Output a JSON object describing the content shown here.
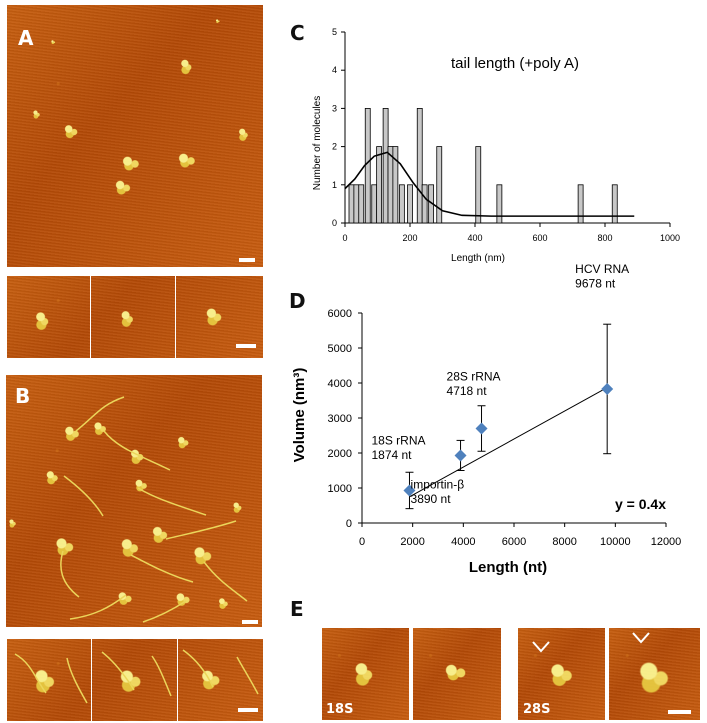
{
  "panel_letters": {
    "A": "A",
    "B": "B",
    "C": "C",
    "D": "D",
    "E": "E"
  },
  "chart_data": [
    {
      "type": "bar",
      "title": "tail length (+poly A)",
      "xlabel": "Length (nm)",
      "ylabel": "Number of molecules",
      "xlim": [
        0,
        1000
      ],
      "ylim": [
        0,
        5
      ],
      "xticks": [
        0,
        200,
        400,
        600,
        800,
        1000
      ],
      "yticks": [
        0,
        1,
        2,
        3,
        4,
        5
      ],
      "grid": false,
      "bars": [
        {
          "x": 20,
          "y": 1
        },
        {
          "x": 35,
          "y": 1
        },
        {
          "x": 50,
          "y": 1
        },
        {
          "x": 70,
          "y": 3
        },
        {
          "x": 90,
          "y": 1
        },
        {
          "x": 105,
          "y": 2
        },
        {
          "x": 125,
          "y": 3
        },
        {
          "x": 140,
          "y": 2
        },
        {
          "x": 155,
          "y": 2
        },
        {
          "x": 175,
          "y": 1
        },
        {
          "x": 200,
          "y": 1
        },
        {
          "x": 230,
          "y": 3
        },
        {
          "x": 245,
          "y": 1
        },
        {
          "x": 265,
          "y": 1
        },
        {
          "x": 290,
          "y": 2
        },
        {
          "x": 410,
          "y": 2
        },
        {
          "x": 475,
          "y": 1
        },
        {
          "x": 725,
          "y": 1
        },
        {
          "x": 830,
          "y": 1
        }
      ],
      "fit_curve": [
        {
          "x": 0,
          "y": 0.9
        },
        {
          "x": 30,
          "y": 1.15
        },
        {
          "x": 60,
          "y": 1.5
        },
        {
          "x": 90,
          "y": 1.75
        },
        {
          "x": 130,
          "y": 1.85
        },
        {
          "x": 170,
          "y": 1.55
        },
        {
          "x": 210,
          "y": 1.05
        },
        {
          "x": 250,
          "y": 0.62
        },
        {
          "x": 300,
          "y": 0.32
        },
        {
          "x": 360,
          "y": 0.2
        },
        {
          "x": 450,
          "y": 0.18
        },
        {
          "x": 890,
          "y": 0.18
        }
      ],
      "colors": {
        "bar_fill": "#c8c8c8",
        "bar_stroke": "#000000",
        "curve": "#000000"
      }
    },
    {
      "type": "scatter",
      "xlabel": "Length (nt)",
      "ylabel": "Volume (nm³)",
      "xlim": [
        0,
        12000
      ],
      "ylim": [
        0,
        6000
      ],
      "xticks": [
        0,
        2000,
        4000,
        6000,
        8000,
        10000,
        12000
      ],
      "yticks": [
        0,
        1000,
        2000,
        3000,
        4000,
        5000,
        6000
      ],
      "grid": false,
      "fit_label": "y = 0.4x",
      "fit_line": {
        "slope": 0.4,
        "x_start": 1874,
        "x_end": 9678
      },
      "points": [
        {
          "x": 1874,
          "y": 930,
          "err": 520,
          "label_lines": [
            "18S rRNA",
            "1874 nt"
          ]
        },
        {
          "x": 3890,
          "y": 1930,
          "err": 430,
          "label_lines": [
            "importin-β",
            "3890 nt"
          ]
        },
        {
          "x": 4718,
          "y": 2700,
          "err": 650,
          "label_lines": [
            "28S rRNA",
            "4718 nt"
          ]
        },
        {
          "x": 9678,
          "y": 3830,
          "err": 1850,
          "label_lines": [
            "HCV RNA",
            "9678 nt"
          ]
        }
      ],
      "colors": {
        "marker": "#4f81bd",
        "error_bar": "#000000",
        "fit_line": "#000000"
      }
    }
  ],
  "image_labels": {
    "e1": "18S",
    "e3": "28S"
  }
}
